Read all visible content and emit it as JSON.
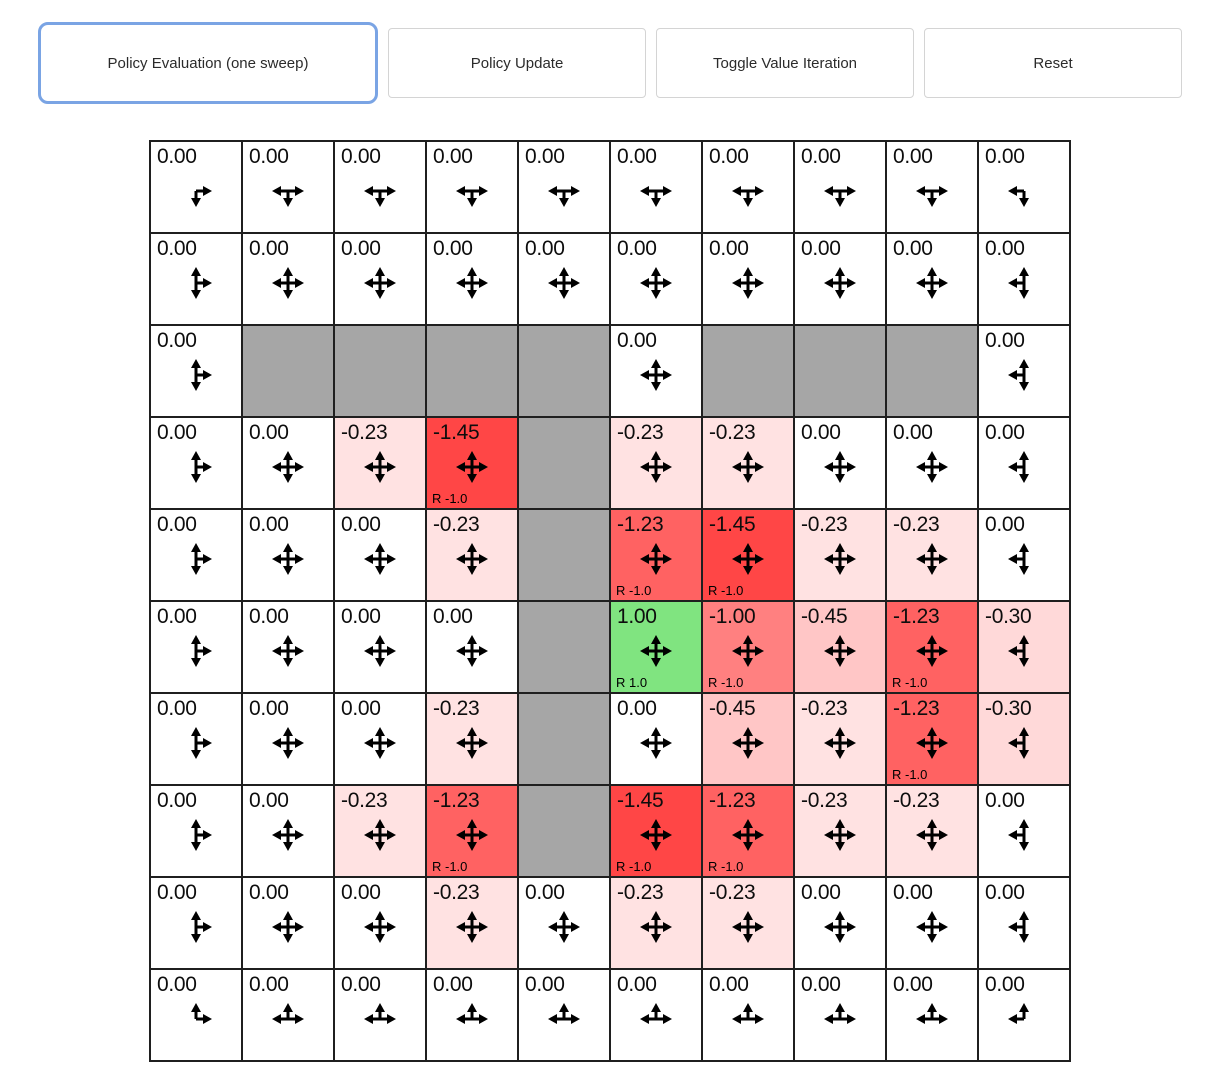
{
  "toolbar": {
    "buttons": [
      {
        "label": "Policy Evaluation (one sweep)",
        "active": true
      },
      {
        "label": "Policy Update",
        "active": false
      },
      {
        "label": "Toggle Value Iteration",
        "active": false
      },
      {
        "label": "Reset",
        "active": false
      }
    ]
  },
  "colors": {
    "active_border": "#7aa4e4",
    "button_border": "#d4d4d4",
    "wall": "#a6a6a6",
    "negative_base": "#ff0000",
    "positive_base": "#00c800",
    "grid_line": "#1f1f1f"
  },
  "grid": {
    "rows": 10,
    "cols": 10,
    "cells": [
      [
        {
          "v": "0.00",
          "a": "DR"
        },
        {
          "v": "0.00",
          "a": "DLR"
        },
        {
          "v": "0.00",
          "a": "DLR"
        },
        {
          "v": "0.00",
          "a": "DLR"
        },
        {
          "v": "0.00",
          "a": "DLR"
        },
        {
          "v": "0.00",
          "a": "DLR"
        },
        {
          "v": "0.00",
          "a": "DLR"
        },
        {
          "v": "0.00",
          "a": "DLR"
        },
        {
          "v": "0.00",
          "a": "DLR"
        },
        {
          "v": "0.00",
          "a": "DL"
        }
      ],
      [
        {
          "v": "0.00",
          "a": "UDR"
        },
        {
          "v": "0.00",
          "a": "UDLR"
        },
        {
          "v": "0.00",
          "a": "UDLR"
        },
        {
          "v": "0.00",
          "a": "UDLR"
        },
        {
          "v": "0.00",
          "a": "UDLR"
        },
        {
          "v": "0.00",
          "a": "UDLR"
        },
        {
          "v": "0.00",
          "a": "UDLR"
        },
        {
          "v": "0.00",
          "a": "UDLR"
        },
        {
          "v": "0.00",
          "a": "UDLR"
        },
        {
          "v": "0.00",
          "a": "UDL"
        }
      ],
      [
        {
          "v": "0.00",
          "a": "UDR"
        },
        {
          "w": true
        },
        {
          "w": true
        },
        {
          "w": true
        },
        {
          "w": true
        },
        {
          "v": "0.00",
          "a": "UDLR"
        },
        {
          "w": true
        },
        {
          "w": true
        },
        {
          "w": true
        },
        {
          "v": "0.00",
          "a": "UDL"
        }
      ],
      [
        {
          "v": "0.00",
          "a": "UDR"
        },
        {
          "v": "0.00",
          "a": "UDLR"
        },
        {
          "v": "-0.23",
          "a": "UDLR"
        },
        {
          "v": "-1.45",
          "a": "UDLR",
          "r": "R -1.0"
        },
        {
          "w": true
        },
        {
          "v": "-0.23",
          "a": "UDLR"
        },
        {
          "v": "-0.23",
          "a": "UDLR"
        },
        {
          "v": "0.00",
          "a": "UDLR"
        },
        {
          "v": "0.00",
          "a": "UDLR"
        },
        {
          "v": "0.00",
          "a": "UDL"
        }
      ],
      [
        {
          "v": "0.00",
          "a": "UDR"
        },
        {
          "v": "0.00",
          "a": "UDLR"
        },
        {
          "v": "0.00",
          "a": "UDLR"
        },
        {
          "v": "-0.23",
          "a": "UDLR"
        },
        {
          "w": true
        },
        {
          "v": "-1.23",
          "a": "UDLR",
          "r": "R -1.0"
        },
        {
          "v": "-1.45",
          "a": "UDLR",
          "r": "R -1.0"
        },
        {
          "v": "-0.23",
          "a": "UDLR"
        },
        {
          "v": "-0.23",
          "a": "UDLR"
        },
        {
          "v": "0.00",
          "a": "UDL"
        }
      ],
      [
        {
          "v": "0.00",
          "a": "UDR"
        },
        {
          "v": "0.00",
          "a": "UDLR"
        },
        {
          "v": "0.00",
          "a": "UDLR"
        },
        {
          "v": "0.00",
          "a": "UDLR"
        },
        {
          "w": true
        },
        {
          "v": "1.00",
          "a": "UDLR",
          "r": "R 1.0"
        },
        {
          "v": "-1.00",
          "a": "UDLR",
          "r": "R -1.0"
        },
        {
          "v": "-0.45",
          "a": "UDLR"
        },
        {
          "v": "-1.23",
          "a": "UDLR",
          "r": "R -1.0"
        },
        {
          "v": "-0.30",
          "a": "UDL"
        }
      ],
      [
        {
          "v": "0.00",
          "a": "UDR"
        },
        {
          "v": "0.00",
          "a": "UDLR"
        },
        {
          "v": "0.00",
          "a": "UDLR"
        },
        {
          "v": "-0.23",
          "a": "UDLR"
        },
        {
          "w": true
        },
        {
          "v": "0.00",
          "a": "UDLR"
        },
        {
          "v": "-0.45",
          "a": "UDLR"
        },
        {
          "v": "-0.23",
          "a": "UDLR"
        },
        {
          "v": "-1.23",
          "a": "UDLR",
          "r": "R -1.0"
        },
        {
          "v": "-0.30",
          "a": "UDL"
        }
      ],
      [
        {
          "v": "0.00",
          "a": "UDR"
        },
        {
          "v": "0.00",
          "a": "UDLR"
        },
        {
          "v": "-0.23",
          "a": "UDLR"
        },
        {
          "v": "-1.23",
          "a": "UDLR",
          "r": "R -1.0"
        },
        {
          "w": true
        },
        {
          "v": "-1.45",
          "a": "UDLR",
          "r": "R -1.0"
        },
        {
          "v": "-1.23",
          "a": "UDLR",
          "r": "R -1.0"
        },
        {
          "v": "-0.23",
          "a": "UDLR"
        },
        {
          "v": "-0.23",
          "a": "UDLR"
        },
        {
          "v": "0.00",
          "a": "UDL"
        }
      ],
      [
        {
          "v": "0.00",
          "a": "UDR"
        },
        {
          "v": "0.00",
          "a": "UDLR"
        },
        {
          "v": "0.00",
          "a": "UDLR"
        },
        {
          "v": "-0.23",
          "a": "UDLR"
        },
        {
          "v": "0.00",
          "a": "UDLR"
        },
        {
          "v": "-0.23",
          "a": "UDLR"
        },
        {
          "v": "-0.23",
          "a": "UDLR"
        },
        {
          "v": "0.00",
          "a": "UDLR"
        },
        {
          "v": "0.00",
          "a": "UDLR"
        },
        {
          "v": "0.00",
          "a": "UDL"
        }
      ],
      [
        {
          "v": "0.00",
          "a": "UR"
        },
        {
          "v": "0.00",
          "a": "ULR"
        },
        {
          "v": "0.00",
          "a": "ULR"
        },
        {
          "v": "0.00",
          "a": "ULR"
        },
        {
          "v": "0.00",
          "a": "ULR"
        },
        {
          "v": "0.00",
          "a": "ULR"
        },
        {
          "v": "0.00",
          "a": "ULR"
        },
        {
          "v": "0.00",
          "a": "ULR"
        },
        {
          "v": "0.00",
          "a": "ULR"
        },
        {
          "v": "0.00",
          "a": "UL"
        }
      ]
    ]
  }
}
